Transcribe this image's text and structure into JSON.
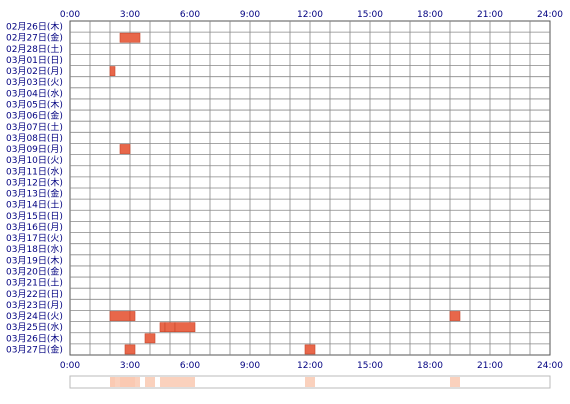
{
  "chart_data": {
    "type": "heatmap",
    "x_ticks": [
      "0:00",
      "3:00",
      "6:00",
      "9:00",
      "12:00",
      "15:00",
      "18:00",
      "21:00",
      "24:00"
    ],
    "x_range_hours": [
      0,
      24
    ],
    "grid": true,
    "dates": [
      "02月26日(木)",
      "02月27日(金)",
      "02月28日(土)",
      "03月01日(日)",
      "03月02日(月)",
      "03月03日(火)",
      "03月04日(水)",
      "03月05日(木)",
      "03月06日(金)",
      "03月07日(土)",
      "03月08日(日)",
      "03月09日(月)",
      "03月10日(火)",
      "03月11日(水)",
      "03月12日(木)",
      "03月13日(金)",
      "03月14日(土)",
      "03月15日(日)",
      "03月16日(月)",
      "03月17日(火)",
      "03月18日(水)",
      "03月19日(木)",
      "03月20日(金)",
      "03月21日(土)",
      "03月22日(日)",
      "03月23日(月)",
      "03月24日(火)",
      "03月25日(水)",
      "03月26日(木)",
      "03月27日(金)"
    ],
    "activity": [
      {
        "date": "02月27日(金)",
        "start": 2.5,
        "end": 3.5
      },
      {
        "date": "03月02日(月)",
        "start": 2.0,
        "end": 2.25
      },
      {
        "date": "03月09日(月)",
        "start": 2.5,
        "end": 3.0
      },
      {
        "date": "03月24日(火)",
        "start": 2.0,
        "end": 3.0
      },
      {
        "date": "03月24日(火)",
        "start": 3.0,
        "end": 3.25
      },
      {
        "date": "03月24日(火)",
        "start": 19.0,
        "end": 19.5
      },
      {
        "date": "03月25日(水)",
        "start": 4.5,
        "end": 4.75
      },
      {
        "date": "03月25日(水)",
        "start": 4.75,
        "end": 5.25
      },
      {
        "date": "03月25日(水)",
        "start": 5.25,
        "end": 6.25
      },
      {
        "date": "03月26日(木)",
        "start": 3.75,
        "end": 4.25
      },
      {
        "date": "03月27日(金)",
        "start": 2.75,
        "end": 3.25
      },
      {
        "date": "03月27日(金)",
        "start": 11.75,
        "end": 12.25
      }
    ],
    "colors": {
      "bar": "#e8674a",
      "bar_edge": "#c9452a",
      "grid": "#888888",
      "frame": "#555555",
      "label": "#000080",
      "summary": "#f9c9b2"
    }
  }
}
